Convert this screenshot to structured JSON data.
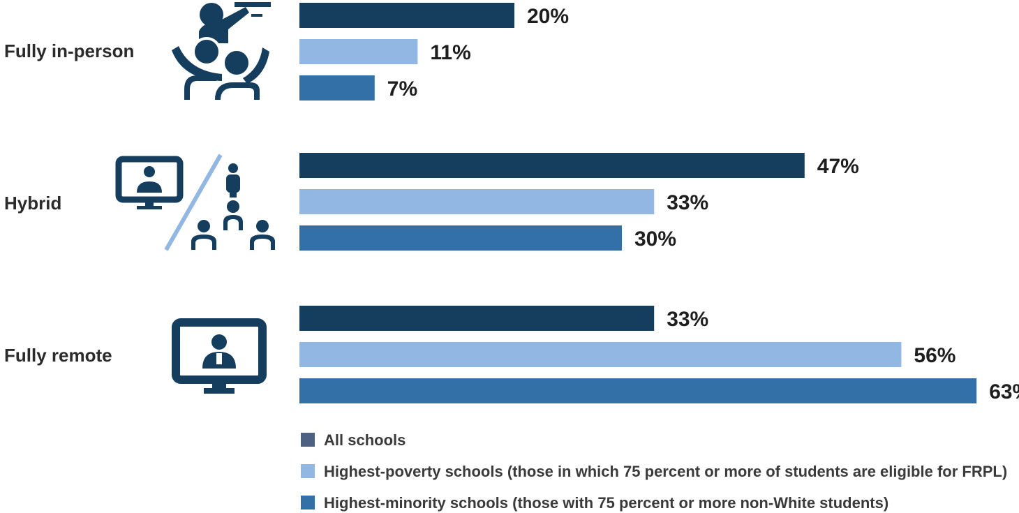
{
  "chart_data": {
    "type": "bar",
    "orientation": "horizontal",
    "categories": [
      "Fully in-person",
      "Hybrid",
      "Fully remote"
    ],
    "series": [
      {
        "name": "All schools",
        "values": [
          20,
          47,
          33
        ],
        "color": "#143d5e"
      },
      {
        "name": "Highest-poverty schools (those in which 75 percent or more of students are eligible for FRPL)",
        "values": [
          11,
          33,
          56
        ],
        "color": "#92b7e3"
      },
      {
        "name": "Highest-minority schools (those with 75 percent or more non-White students)",
        "values": [
          7,
          30,
          63
        ],
        "color": "#3470a8"
      }
    ],
    "value_suffix": "%",
    "xlim": [
      0,
      63
    ],
    "grid": false,
    "legend": "bottom",
    "legend_swatch_colors": [
      "#4e6182",
      "#92b7e3",
      "#3470a8"
    ],
    "category_icons": [
      "classroom-teacher-students-icon",
      "hybrid-screen-and-classroom-icon",
      "remote-video-screen-icon"
    ]
  }
}
